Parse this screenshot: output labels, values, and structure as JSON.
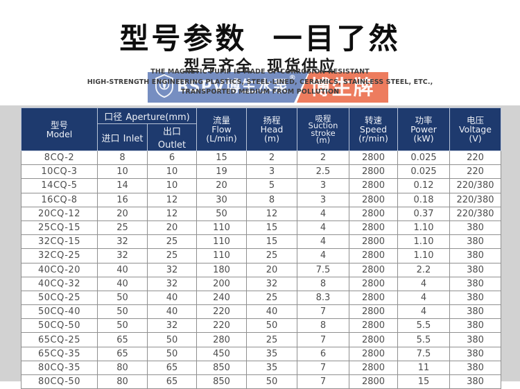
{
  "header": {
    "title": "型号参数  一目了然",
    "subtitle": "型号齐全  现货供应"
  },
  "description": {
    "line1": "THE MAGNETIC PUMP IS MADE OF CORROSION-RESISTANT",
    "line2": "HIGH-STRENGTH ENGINEERING PLASTICS, STEEL-LINED, CERAMICS, STAINLESS STEEL, ETC.,",
    "line3": "TRANSPORTED MEDIUM FROM POLLUTION"
  },
  "watermark": {
    "brand": "BSPV博生水泵",
    "registered": "®",
    "badge": "博生牌",
    "blue_color": "#4868ac",
    "orange_color": "#e95f3a"
  },
  "colors": {
    "table_header_bg": "#1e3a6e",
    "page_gray": "#d2d2d2"
  },
  "table": {
    "column_keys": [
      "model",
      "inlet",
      "outlet",
      "flow",
      "head",
      "suction",
      "speed",
      "power",
      "voltage"
    ],
    "columns": {
      "model": {
        "zh": "型号",
        "en": "Model"
      },
      "aperture": {
        "zh": "口径",
        "en": "Aperture(mm)"
      },
      "inlet": {
        "zh": "进口",
        "en": "Inlet"
      },
      "outlet": {
        "zh": "出口",
        "en": "Outlet"
      },
      "flow": {
        "zh": "流量",
        "en": "Flow",
        "unit": "(L/min)"
      },
      "head": {
        "zh": "扬程",
        "en": "Head",
        "unit": "(m)"
      },
      "suction": {
        "zh": "吸程",
        "en1": "Suction",
        "en2": "stroke",
        "unit": "(m)"
      },
      "speed": {
        "zh": "转速",
        "en": "Speed",
        "unit": "(r/min)"
      },
      "power": {
        "zh": "功率",
        "en": "Power",
        "unit": "(kW)"
      },
      "voltage": {
        "zh": "电压",
        "en": "Voltage",
        "unit": "(V)"
      }
    },
    "rows": [
      [
        "8CQ-2",
        "8",
        "6",
        "15",
        "2",
        "2",
        "2800",
        "0.025",
        "220"
      ],
      [
        "10CQ-3",
        "10",
        "10",
        "19",
        "3",
        "2.5",
        "2800",
        "0.025",
        "220"
      ],
      [
        "14CQ-5",
        "14",
        "10",
        "20",
        "5",
        "3",
        "2800",
        "0.12",
        "220/380"
      ],
      [
        "16CQ-8",
        "16",
        "12",
        "30",
        "8",
        "3",
        "2800",
        "0.18",
        "220/380"
      ],
      [
        "20CQ-12",
        "20",
        "12",
        "50",
        "12",
        "4",
        "2800",
        "0.37",
        "220/380"
      ],
      [
        "25CQ-15",
        "25",
        "20",
        "110",
        "15",
        "4",
        "2800",
        "1.10",
        "380"
      ],
      [
        "32CQ-15",
        "32",
        "25",
        "110",
        "15",
        "4",
        "2800",
        "1.10",
        "380"
      ],
      [
        "32CQ-25",
        "32",
        "25",
        "110",
        "25",
        "4",
        "2800",
        "1.10",
        "380"
      ],
      [
        "40CQ-20",
        "40",
        "32",
        "180",
        "20",
        "7.5",
        "2800",
        "2.2",
        "380"
      ],
      [
        "40CQ-32",
        "40",
        "32",
        "200",
        "32",
        "8",
        "2800",
        "4",
        "380"
      ],
      [
        "50CQ-25",
        "50",
        "40",
        "240",
        "25",
        "8.3",
        "2800",
        "4",
        "380"
      ],
      [
        "50CQ-40",
        "50",
        "40",
        "220",
        "40",
        "7",
        "2800",
        "4",
        "380"
      ],
      [
        "50CQ-50",
        "50",
        "32",
        "220",
        "50",
        "8",
        "2800",
        "5.5",
        "380"
      ],
      [
        "65CQ-25",
        "65",
        "50",
        "280",
        "25",
        "7",
        "2800",
        "5.5",
        "380"
      ],
      [
        "65CQ-35",
        "65",
        "50",
        "450",
        "35",
        "6",
        "2800",
        "7.5",
        "380"
      ],
      [
        "80CQ-35",
        "80",
        "65",
        "850",
        "35",
        "7",
        "2800",
        "11",
        "380"
      ],
      [
        "80CQ-50",
        "80",
        "65",
        "850",
        "50",
        "7",
        "2800",
        "15",
        "380"
      ]
    ]
  }
}
